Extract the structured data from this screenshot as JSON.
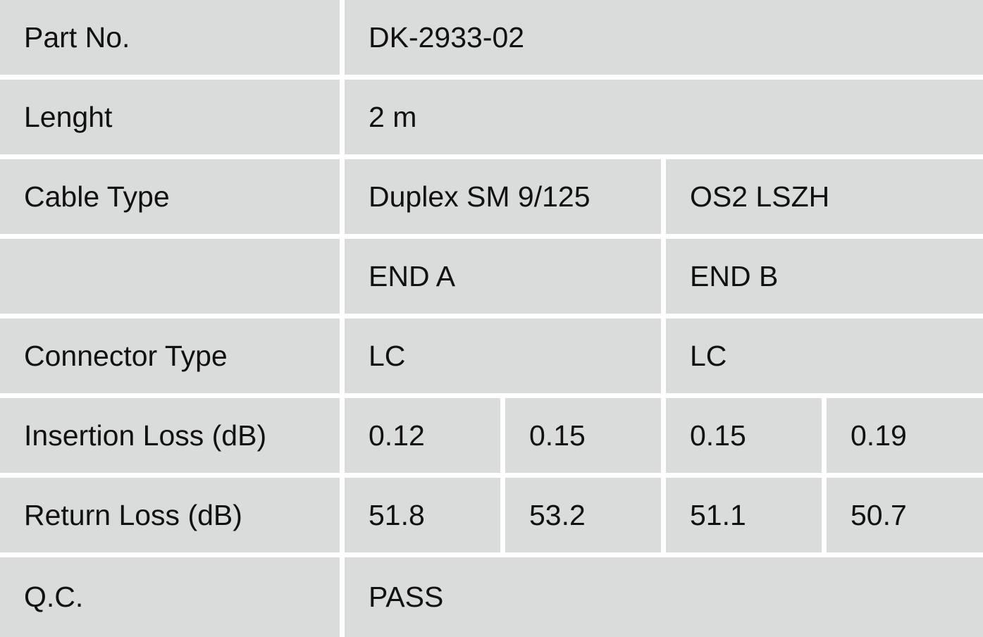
{
  "rows": [
    {
      "label": "Part No.",
      "value": "DK-2933-02"
    },
    {
      "label": "Lenght",
      "value": "2 m"
    },
    {
      "label": "Cable Type",
      "end_a": "Duplex SM 9/125",
      "end_b": "OS2 LSZH"
    },
    {
      "label": "",
      "end_a": "END A",
      "end_b": "END B"
    },
    {
      "label": "Connector Type",
      "end_a": "LC",
      "end_b": "LC"
    },
    {
      "label": "Insertion Loss (dB)",
      "values": [
        "0.12",
        "0.15",
        "0.15",
        "0.19"
      ]
    },
    {
      "label": "Return Loss (dB)",
      "values": [
        "51.8",
        "53.2",
        "51.1",
        "50.7"
      ]
    },
    {
      "label": "Q.C.",
      "value": "PASS"
    }
  ]
}
